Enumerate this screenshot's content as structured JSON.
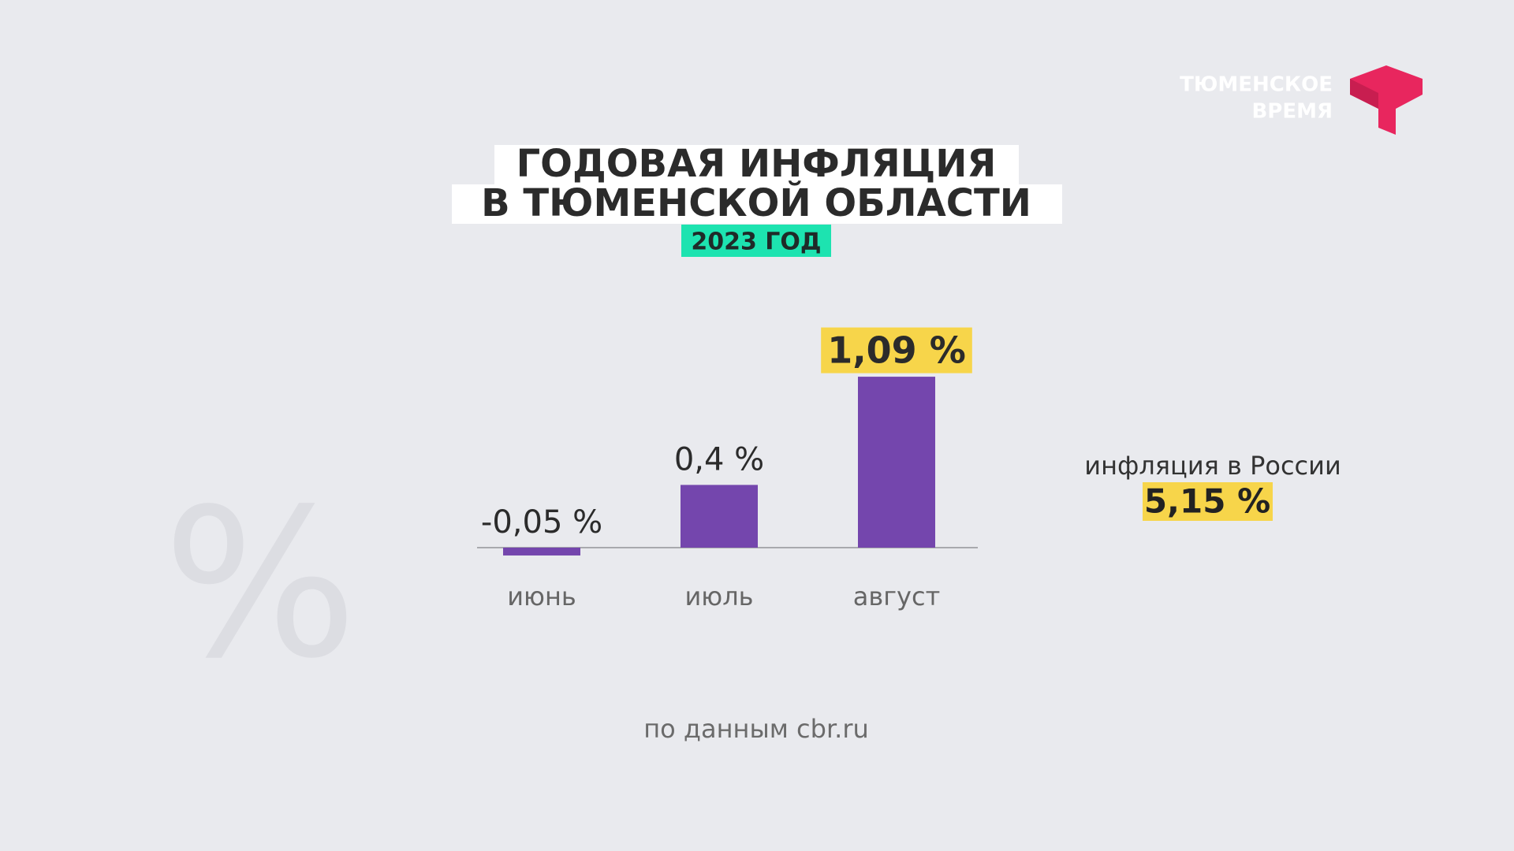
{
  "chart_data": {
    "type": "bar",
    "title_lines": [
      "ГОДОВАЯ ИНФЛЯЦИЯ",
      "В ТЮМЕНСКОЙ ОБЛАСТИ"
    ],
    "subtitle": "2023 ГОД",
    "categories": [
      "июнь",
      "июль",
      "август"
    ],
    "values": [
      -0.05,
      0.4,
      1.09
    ],
    "value_labels": [
      "-0,05 %",
      "0,4 %",
      "1,09 %"
    ],
    "color": "#7446ad",
    "highlight_color": "#f7d54a",
    "annotation": {
      "label": "инфляция в России",
      "value_label": "5,15 %"
    },
    "source": "по данным cbr.ru"
  },
  "logo": {
    "lines": [
      "ТЮМЕНСКОЕ",
      "ВРЕМЯ"
    ]
  }
}
